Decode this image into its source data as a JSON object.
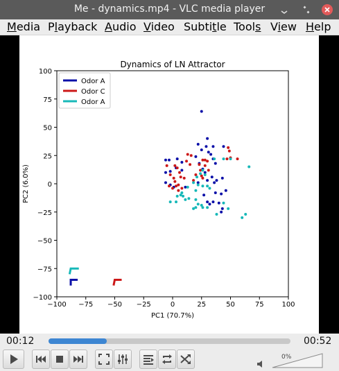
{
  "window": {
    "title": "Me - dynamics.mp4 - VLC media player"
  },
  "menu": [
    {
      "label": "Media",
      "key": "M",
      "rest": "edia"
    },
    {
      "label": "Playback",
      "key": "l",
      "pre": "P",
      "rest": "ayback"
    },
    {
      "label": "Audio",
      "key": "A",
      "rest": "udio"
    },
    {
      "label": "Video",
      "key": "V",
      "rest": "ideo"
    },
    {
      "label": "Subtitle",
      "key": "t",
      "pre": "Subti",
      "rest": "le"
    },
    {
      "label": "Tools",
      "key": "s",
      "pre": "Tool",
      "rest": ""
    },
    {
      "label": "View",
      "key": "i",
      "pre": "V",
      "rest": "ew"
    },
    {
      "label": "Help",
      "key": "H",
      "rest": "elp"
    }
  ],
  "player": {
    "elapsed": "00:12",
    "total": "00:52",
    "progress": 0.24,
    "volume_label": "0%",
    "volume": 0
  },
  "icons": [
    "minimize-icon",
    "maximize-icon",
    "close-icon",
    "play-icon",
    "previous-icon",
    "stop-icon",
    "next-icon",
    "fullscreen-icon",
    "extended-settings-icon",
    "playlist-icon",
    "loop-icon",
    "shuffle-icon",
    "speaker-icon"
  ],
  "chart_data": {
    "type": "scatter",
    "title": "Dynamics of LN Attractor",
    "xlabel": "PC1 (70.7%)",
    "ylabel": "PC2 (6.0%)",
    "xlim": [
      -100,
      100
    ],
    "ylim": [
      -100,
      100
    ],
    "xticks": [
      -100,
      -75,
      -50,
      -25,
      0,
      25,
      50,
      75,
      100
    ],
    "yticks": [
      -100,
      -75,
      -50,
      -25,
      0,
      25,
      50,
      75,
      100
    ],
    "legend_position": "top-left",
    "series": [
      {
        "name": "Odor A",
        "color": "#0b0fa8",
        "points": [
          [
            25,
            64
          ],
          [
            30,
            40
          ],
          [
            22,
            35
          ],
          [
            29,
            33
          ],
          [
            35,
            33
          ],
          [
            44,
            33
          ],
          [
            -6,
            21
          ],
          [
            -3,
            21
          ],
          [
            4,
            22
          ],
          [
            8,
            19
          ],
          [
            25,
            30
          ],
          [
            31,
            28
          ],
          [
            33,
            26
          ],
          [
            35,
            22
          ],
          [
            37,
            18
          ],
          [
            26,
            13
          ],
          [
            28,
            10
          ],
          [
            -6,
            10
          ],
          [
            -2,
            11
          ],
          [
            3,
            14
          ],
          [
            8,
            12
          ],
          [
            34,
            6
          ],
          [
            38,
            3
          ],
          [
            43,
            5
          ],
          [
            22,
            1
          ],
          [
            30,
            3
          ],
          [
            36,
            1
          ],
          [
            -6,
            1
          ],
          [
            -2,
            -1
          ],
          [
            1,
            -3
          ],
          [
            11,
            -3
          ],
          [
            37,
            -8
          ],
          [
            42,
            -9
          ],
          [
            30,
            -16
          ],
          [
            35,
            -16
          ],
          [
            32,
            -18
          ],
          [
            40,
            -17
          ],
          [
            43,
            -22
          ],
          [
            42,
            -25
          ],
          [
            46,
            -6
          ],
          [
            23,
            18
          ],
          [
            20,
            24
          ],
          [
            27,
            -10
          ]
        ]
      },
      {
        "name": "Odor C",
        "color": "#cc1919",
        "points": [
          [
            48,
            32
          ],
          [
            49,
            29
          ],
          [
            13,
            26
          ],
          [
            16,
            25
          ],
          [
            56,
            22
          ],
          [
            47,
            22
          ],
          [
            50,
            23
          ],
          [
            26,
            21
          ],
          [
            28,
            21
          ],
          [
            30,
            20
          ],
          [
            12,
            20
          ],
          [
            15,
            17
          ],
          [
            23,
            17
          ],
          [
            28,
            16
          ],
          [
            -5,
            16
          ],
          [
            2,
            16
          ],
          [
            4,
            14
          ],
          [
            6,
            10
          ],
          [
            -2,
            8
          ],
          [
            7,
            6
          ],
          [
            10,
            5
          ],
          [
            20,
            8
          ],
          [
            25,
            7
          ],
          [
            26,
            5
          ],
          [
            1,
            5
          ],
          [
            2,
            2
          ],
          [
            3,
            -2
          ],
          [
            5,
            -1
          ],
          [
            8,
            -4
          ],
          [
            -3,
            -2
          ],
          [
            18,
            3
          ],
          [
            24,
            12
          ],
          [
            31,
            12
          ],
          [
            0,
            -4
          ],
          [
            5,
            -6
          ]
        ]
      },
      {
        "name": "Odor A",
        "color": "#17b8b8",
        "points": [
          [
            44,
            22
          ],
          [
            50,
            22
          ],
          [
            66,
            15
          ],
          [
            36,
            22
          ],
          [
            26,
            12
          ],
          [
            24,
            9
          ],
          [
            21,
            6
          ],
          [
            28,
            8
          ],
          [
            18,
            1
          ],
          [
            22,
            -1
          ],
          [
            13,
            -3
          ],
          [
            26,
            -2
          ],
          [
            30,
            -2
          ],
          [
            32,
            -4
          ],
          [
            20,
            -6
          ],
          [
            8,
            -8
          ],
          [
            7,
            -10
          ],
          [
            9,
            -11
          ],
          [
            4,
            -11
          ],
          [
            11,
            -14
          ],
          [
            14,
            -13
          ],
          [
            20,
            -14
          ],
          [
            22,
            -18
          ],
          [
            25,
            -19
          ],
          [
            26,
            -21
          ],
          [
            30,
            -21
          ],
          [
            20,
            -21
          ],
          [
            -2,
            -16
          ],
          [
            3,
            -16
          ],
          [
            18,
            -22
          ],
          [
            44,
            -17
          ],
          [
            48,
            -22
          ],
          [
            38,
            -27
          ],
          [
            60,
            -30
          ],
          [
            63,
            -27
          ]
        ]
      }
    ],
    "trajectories": [
      {
        "series": 0,
        "points": [
          [
            -88,
            -90
          ],
          [
            -88,
            -85
          ],
          [
            -82,
            -85
          ]
        ]
      },
      {
        "series": 1,
        "points": [
          [
            -51,
            -90
          ],
          [
            -50,
            -85
          ],
          [
            -44,
            -85
          ]
        ]
      },
      {
        "series": 2,
        "points": [
          [
            -89,
            -80
          ],
          [
            -88,
            -75
          ],
          [
            -81,
            -75
          ]
        ]
      }
    ]
  }
}
